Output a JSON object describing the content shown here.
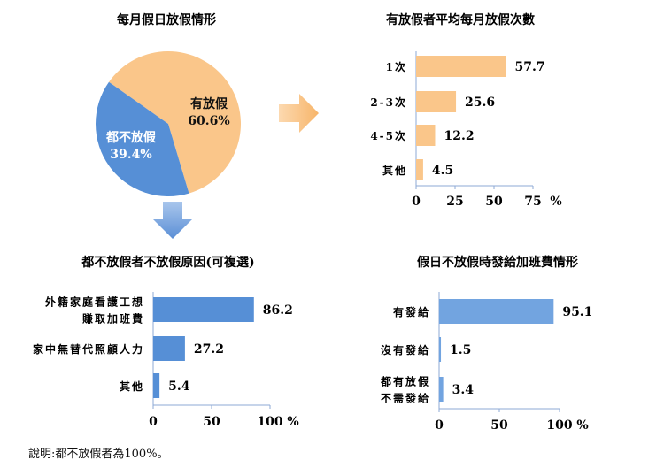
{
  "chart_data": [
    {
      "type": "pie",
      "title": "每月假日放假情形",
      "slices": [
        {
          "label": "有放假",
          "value": 60.6,
          "display": "60.6%",
          "color": "#FAC68A"
        },
        {
          "label": "都不放假",
          "value": 39.4,
          "display": "39.4%",
          "color": "#568FD6"
        }
      ]
    },
    {
      "type": "bar",
      "orientation": "horizontal",
      "title": "有放假者平均每月放假次數",
      "categories": [
        "1次",
        "2-3次",
        "4-5次",
        "其他"
      ],
      "values": [
        57.7,
        25.6,
        12.2,
        4.5
      ],
      "xlim": [
        0,
        75
      ],
      "ticks": [
        "0",
        "25",
        "50",
        "75"
      ],
      "unit": "%",
      "color": "#FAC68A",
      "grid": false
    },
    {
      "type": "bar",
      "orientation": "horizontal",
      "title": "都不放假者不放假原因(可複選)",
      "categories": [
        [
          "外籍家庭看護工想",
          "賺取加班費"
        ],
        [
          "家中無替代照顧人力"
        ],
        [
          "其他"
        ]
      ],
      "values": [
        86.2,
        27.2,
        5.4
      ],
      "xlim": [
        0,
        100
      ],
      "ticks": [
        "0",
        "50",
        "100"
      ],
      "unit": "%",
      "color": "#568FD6",
      "grid": false
    },
    {
      "type": "bar",
      "orientation": "horizontal",
      "title": "假日不放假時發給加班費情形",
      "categories": [
        [
          "有發給"
        ],
        [
          "沒有發給"
        ],
        [
          "都有放假",
          "不需發給"
        ]
      ],
      "values": [
        95.1,
        1.5,
        3.4
      ],
      "xlim": [
        0,
        100
      ],
      "ticks": [
        "0",
        "50",
        "100"
      ],
      "unit": "%",
      "color": "#72A4E0",
      "grid": false
    }
  ],
  "note": "說明:都不放假者為100%。"
}
